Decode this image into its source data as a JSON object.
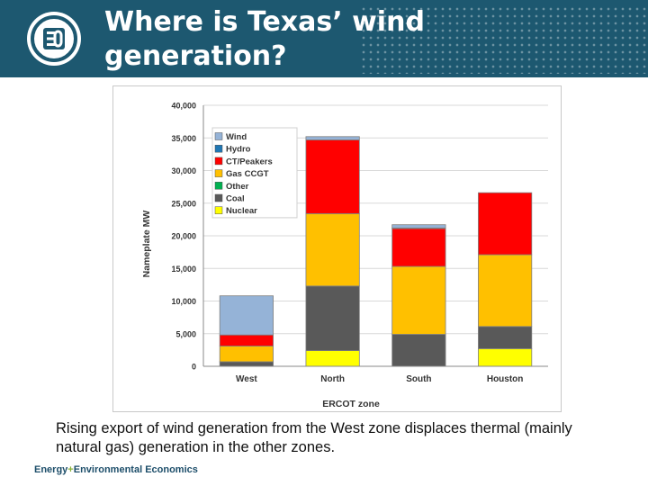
{
  "header": {
    "title": "Where is Texas’ wind\ngeneration?",
    "logo_icon": "e3-logo-icon"
  },
  "caption": "Rising export of wind generation from the West zone displaces thermal (mainly natural gas) generation in the other zones.",
  "footer": {
    "brand_part1": "Energy",
    "brand_plus": "+",
    "brand_part2": "Environmental Economics"
  },
  "colors": {
    "header_bg": "#1d5870",
    "Wind": "#95b3d7",
    "Hydro": "#1f77b4",
    "CT/Peakers": "#ff0000",
    "Gas CCGT": "#ffc000",
    "Other": "#00b050",
    "Coal": "#595959",
    "Nuclear": "#ffff00"
  },
  "chart_data": {
    "type": "bar",
    "stacked": true,
    "categories": [
      "West",
      "North",
      "South",
      "Houston"
    ],
    "xlabel": "ERCOT zone",
    "ylabel": "Nameplate MW",
    "ylim": [
      0,
      40000
    ],
    "yticks": [
      "0",
      "5,000",
      "10,000",
      "15,000",
      "20,000",
      "25,000",
      "30,000",
      "35,000",
      "40,000"
    ],
    "grid": true,
    "legend": "top-left",
    "legend_order": [
      "Wind",
      "Hydro",
      "CT/Peakers",
      "Gas CCGT",
      "Other",
      "Coal",
      "Nuclear"
    ],
    "series": [
      {
        "name": "Nuclear",
        "values": [
          0,
          2400,
          0,
          2700
        ]
      },
      {
        "name": "Coal",
        "values": [
          700,
          9900,
          4900,
          3400
        ]
      },
      {
        "name": "Other",
        "values": [
          0,
          0,
          0,
          0
        ]
      },
      {
        "name": "Gas CCGT",
        "values": [
          2400,
          11100,
          10400,
          11000
        ]
      },
      {
        "name": "CT/Peakers",
        "values": [
          1700,
          11300,
          5800,
          9500
        ]
      },
      {
        "name": "Hydro",
        "values": [
          0,
          0,
          100,
          0
        ]
      },
      {
        "name": "Wind",
        "values": [
          6000,
          500,
          500,
          0
        ]
      }
    ]
  }
}
